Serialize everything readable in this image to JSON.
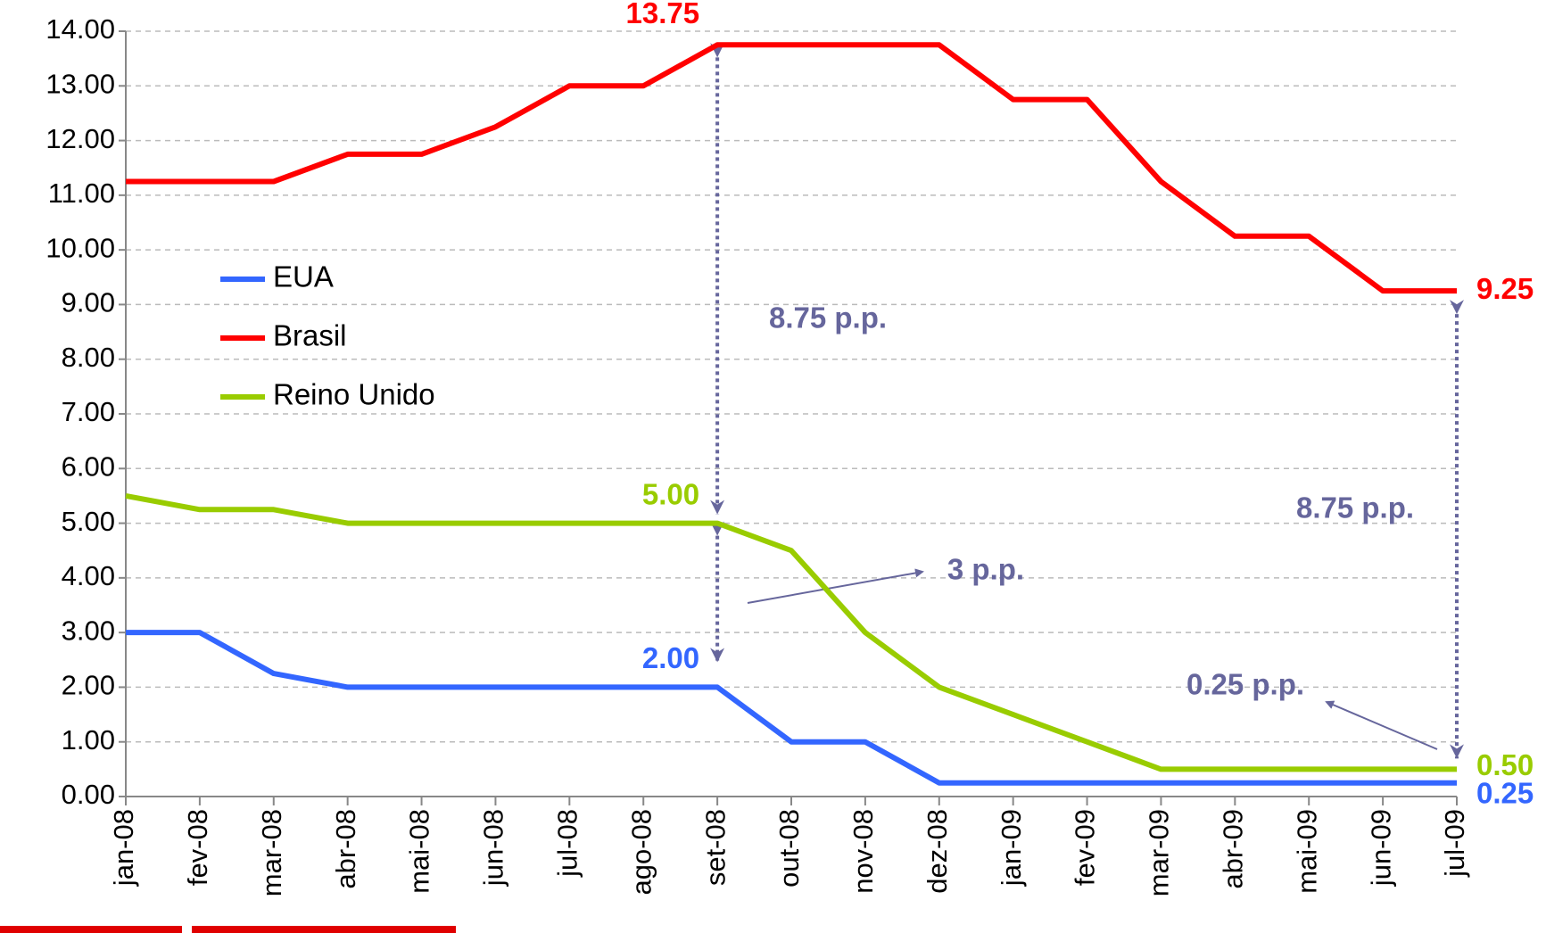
{
  "chart_data": {
    "type": "line",
    "categories": [
      "jan-08",
      "fev-08",
      "mar-08",
      "abr-08",
      "mai-08",
      "jun-08",
      "jul-08",
      "ago-08",
      "set-08",
      "out-08",
      "nov-08",
      "dez-08",
      "jan-09",
      "fev-09",
      "mar-09",
      "abr-09",
      "mai-09",
      "jun-09",
      "jul-09"
    ],
    "series": [
      {
        "name": "EUA",
        "color": "#3366ff",
        "values": [
          3,
          3,
          2.25,
          2,
          2,
          2,
          2,
          2,
          2,
          1,
          1,
          0.25,
          0.25,
          0.25,
          0.25,
          0.25,
          0.25,
          0.25,
          0.25
        ],
        "value_labels": [
          null,
          null,
          null,
          null,
          null,
          null,
          null,
          null,
          "2.00",
          null,
          null,
          null,
          null,
          null,
          null,
          null,
          null,
          null,
          "0.25"
        ]
      },
      {
        "name": "Brasil",
        "color": "#ff0000",
        "values": [
          11.25,
          11.25,
          11.25,
          11.75,
          11.75,
          12.25,
          13,
          13,
          13.75,
          13.75,
          13.75,
          13.75,
          12.75,
          12.75,
          11.25,
          10.25,
          10.25,
          9.25,
          9.25
        ],
        "value_labels": [
          null,
          null,
          null,
          null,
          null,
          null,
          null,
          null,
          "13.75",
          null,
          null,
          null,
          null,
          null,
          null,
          null,
          null,
          null,
          "9.25"
        ]
      },
      {
        "name": "Reino Unido",
        "color": "#99cc00",
        "values": [
          5.5,
          5.25,
          5.25,
          5,
          5,
          5,
          5,
          5,
          5,
          4.5,
          3,
          2,
          1.5,
          1,
          0.5,
          0.5,
          0.5,
          0.5,
          0.5
        ],
        "value_labels": [
          null,
          null,
          null,
          null,
          null,
          null,
          null,
          null,
          "5.00",
          null,
          null,
          null,
          null,
          null,
          null,
          null,
          null,
          null,
          "0.50"
        ]
      }
    ],
    "ylim": [
      0,
      14
    ],
    "yticks": [
      {
        "value": 0,
        "label": "0.00"
      },
      {
        "value": 1,
        "label": "1.00"
      },
      {
        "value": 2,
        "label": "2.00"
      },
      {
        "value": 3,
        "label": "3.00"
      },
      {
        "value": 4,
        "label": "4.00"
      },
      {
        "value": 5,
        "label": "5.00"
      },
      {
        "value": 6,
        "label": "6.00"
      },
      {
        "value": 7,
        "label": "7.00"
      },
      {
        "value": 8,
        "label": "8.00"
      },
      {
        "value": 9,
        "label": "9.00"
      },
      {
        "value": 10,
        "label": "10.00"
      },
      {
        "value": 11,
        "label": "11.00"
      },
      {
        "value": 12,
        "label": "12.00"
      },
      {
        "value": 13,
        "label": "13.00"
      },
      {
        "value": 14,
        "label": "14.00"
      }
    ],
    "grid": true,
    "legend": "left",
    "annotations": [
      "8.75 p.p.",
      "8.75 p.p.",
      "3 p.p.",
      "0.25 p.p."
    ]
  }
}
